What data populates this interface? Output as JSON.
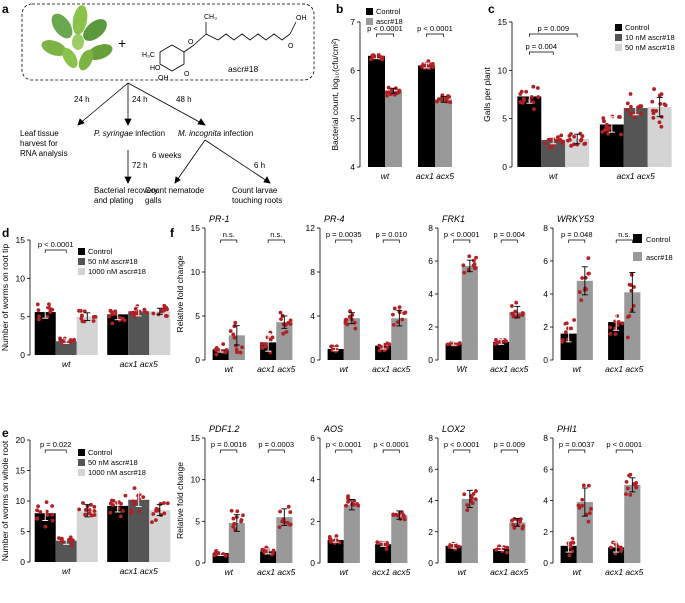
{
  "colors": {
    "control": "#000000",
    "treat_dark": "#555555",
    "treat_mid": "#999999",
    "treat_light": "#d4d4d4",
    "point": "#b02025",
    "axis": "#000000"
  },
  "schematic": {
    "panel_label": "a",
    "compound_label": "ascr#18",
    "plus_sign": "+",
    "time_labels": [
      "24 h",
      "24 h",
      "48 h",
      "72 h",
      "6 weeks",
      "6 h"
    ],
    "nodes": {
      "leaf_tissue": "Leaf tissue\nharvest for\nRNA analysis",
      "pseudomonas_prefix": "P. syringae",
      "pseudomonas_suffix": " infection",
      "meloidogyne_prefix": "M. incognita",
      "meloidogyne_suffix": " infection",
      "bacterial_recovery": "Bacterial recovery\nand plating",
      "count_galls": "Count nematode\ngalls",
      "count_larvae": "Count larvae\ntouching roots"
    },
    "molecule_atoms": [
      "H₃C",
      "OH",
      "O",
      "HO",
      "O",
      "CH₃",
      "OH",
      "O"
    ]
  },
  "chart_data": [
    {
      "panel": "b",
      "type": "bar",
      "ylabel": "Bacterial count, log₁₀(cfu/cm²)",
      "ylim": [
        4,
        7
      ],
      "yticks": [
        "4",
        "5",
        "6",
        "7"
      ],
      "categories": [
        "wt",
        "acx1 acx5"
      ],
      "legend": [
        "Control",
        "ascr#18"
      ],
      "series": [
        {
          "name": "Control",
          "values": [
            6.3,
            6.1
          ],
          "err": [
            0.06,
            0.05
          ]
        },
        {
          "name": "ascr#18",
          "values": [
            5.58,
            5.4
          ],
          "err": [
            0.05,
            0.06
          ]
        }
      ],
      "pvalues": [
        "p < 0.0001",
        "p < 0.0001"
      ]
    },
    {
      "panel": "c",
      "type": "bar",
      "ylabel": "Galls per plant",
      "ylim": [
        0,
        15
      ],
      "yticks": [
        "0",
        "5",
        "10",
        "15"
      ],
      "categories": [
        "wt",
        "acx1 acx5"
      ],
      "legend": [
        "Control",
        "10 nM ascr#18",
        "50 nM ascr#18"
      ],
      "series": [
        {
          "name": "Control",
          "values": [
            7.3,
            4.4
          ],
          "err": [
            0.7,
            0.8
          ]
        },
        {
          "name": "10 nM ascr#18",
          "values": [
            2.8,
            6.1
          ],
          "err": [
            0.4,
            0.7
          ]
        },
        {
          "name": "50 nM ascr#18",
          "values": [
            2.9,
            6.2
          ],
          "err": [
            0.5,
            1.0
          ]
        }
      ],
      "pvalues": [
        "p = 0.009",
        "p = 0.004"
      ]
    },
    {
      "panel": "d",
      "type": "bar",
      "ylabel": "Number of worms on root tip",
      "ylim": [
        0,
        15
      ],
      "yticks": [
        "0",
        "5",
        "10",
        "15"
      ],
      "categories": [
        "wt",
        "acx1 acx5"
      ],
      "legend": [
        "Control",
        "50 nM ascr#18",
        "1000 nM ascr#18"
      ],
      "series": [
        {
          "name": "Control",
          "values": [
            5.6,
            5.3
          ],
          "err": [
            0.8,
            0.7
          ]
        },
        {
          "name": "50 nM ascr#18",
          "values": [
            1.8,
            5.7
          ],
          "err": [
            0.3,
            0.6
          ]
        },
        {
          "name": "1000 nM ascr#18",
          "values": [
            5.0,
            5.7
          ],
          "err": [
            0.5,
            0.4
          ]
        }
      ],
      "pvalues": [
        "p < 0.0001"
      ]
    },
    {
      "panel": "e",
      "type": "bar",
      "ylabel": "Number of worms on whole root",
      "ylim": [
        0,
        20
      ],
      "yticks": [
        "0",
        "5",
        "10",
        "15",
        "20"
      ],
      "categories": [
        "wt",
        "acx1 acx5"
      ],
      "legend": [
        "Control",
        "50 nM ascr#18",
        "1000 nM ascr#18"
      ],
      "series": [
        {
          "name": "Control",
          "values": [
            8.0,
            9.2
          ],
          "err": [
            1.2,
            1.0
          ]
        },
        {
          "name": "50 nM ascr#18",
          "values": [
            3.5,
            10.2
          ],
          "err": [
            0.6,
            1.1
          ]
        },
        {
          "name": "1000 nM ascr#18",
          "values": [
            8.4,
            8.5
          ],
          "err": [
            1.0,
            0.9
          ]
        }
      ],
      "pvalues": [
        "p = 0.022"
      ]
    },
    {
      "panel": "f",
      "type": "bar",
      "gene": "PR-1",
      "ylabel": "Relative fold change",
      "ylim": [
        0,
        15
      ],
      "yticks": [
        "0",
        "5",
        "10",
        "15"
      ],
      "categories": [
        "wt",
        "acx1 acx5"
      ],
      "series": [
        {
          "name": "Control",
          "values": [
            1.2,
            2.0
          ],
          "err": [
            0.3,
            1.0
          ]
        },
        {
          "name": "ascr#18",
          "values": [
            2.8,
            4.3
          ],
          "err": [
            1.1,
            0.7
          ]
        }
      ],
      "pvalues": [
        "n.s.",
        "n.s."
      ]
    },
    {
      "panel": "f",
      "type": "bar",
      "gene": "PR-4",
      "ylabel": "",
      "ylim": [
        0,
        12
      ],
      "yticks": [
        "0",
        "4",
        "8",
        "12"
      ],
      "categories": [
        "wt",
        "acx1 acx5"
      ],
      "series": [
        {
          "name": "Control",
          "values": [
            1.0,
            1.3
          ],
          "err": [
            0.15,
            0.3
          ]
        },
        {
          "name": "ascr#18",
          "values": [
            3.8,
            3.8
          ],
          "err": [
            0.5,
            0.7
          ]
        }
      ],
      "pvalues": [
        "p = 0.0035",
        "p = 0.010"
      ]
    },
    {
      "panel": "f",
      "type": "bar",
      "gene": "FRK1",
      "ylabel": "",
      "ylim": [
        0,
        8
      ],
      "yticks": [
        "0",
        "2",
        "4",
        "6",
        "8"
      ],
      "categories": [
        "Wt",
        "acx1 acx5"
      ],
      "series": [
        {
          "name": "Control",
          "values": [
            1.0,
            1.1
          ],
          "err": [
            0.1,
            0.15
          ]
        },
        {
          "name": "ascr#18",
          "values": [
            5.7,
            2.9
          ],
          "err": [
            0.35,
            0.35
          ]
        }
      ],
      "pvalues": [
        "p < 0.0001",
        "p = 0.004"
      ]
    },
    {
      "panel": "f",
      "type": "bar",
      "gene": "WRKY53",
      "ylabel": "",
      "ylim": [
        0,
        8
      ],
      "yticks": [
        "0",
        "2",
        "4",
        "6",
        "8"
      ],
      "categories": [
        "wt",
        "acx1 acx5"
      ],
      "series": [
        {
          "name": "Control",
          "values": [
            1.6,
            2.3
          ],
          "err": [
            0.5,
            0.5
          ]
        },
        {
          "name": "ascr#18",
          "values": [
            4.8,
            4.1
          ],
          "err": [
            0.85,
            1.2
          ]
        }
      ],
      "pvalues": [
        "p = 0.048",
        "n.s."
      ]
    },
    {
      "panel": "f",
      "type": "bar",
      "gene": "PDF1.2",
      "ylabel": "Relative fold change",
      "ylim": [
        0,
        15
      ],
      "yticks": [
        "0",
        "5",
        "10",
        "15"
      ],
      "categories": [
        "wt",
        "acx1 acx5"
      ],
      "series": [
        {
          "name": "Control",
          "values": [
            1.2,
            1.4
          ],
          "err": [
            0.3,
            0.3
          ]
        },
        {
          "name": "ascr#18",
          "values": [
            4.8,
            5.5
          ],
          "err": [
            1.0,
            1.0
          ]
        }
      ],
      "pvalues": [
        "p = 0.0016",
        "p = 0.0003"
      ]
    },
    {
      "panel": "f",
      "type": "bar",
      "gene": "AOS",
      "ylabel": "",
      "ylim": [
        0,
        6
      ],
      "yticks": [
        "0",
        "2",
        "4",
        "6"
      ],
      "categories": [
        "wt",
        "acx1 acx5"
      ],
      "series": [
        {
          "name": "Control",
          "values": [
            1.1,
            0.9
          ],
          "err": [
            0.1,
            0.1
          ]
        },
        {
          "name": "ascr#18",
          "values": [
            2.8,
            2.3
          ],
          "err": [
            0.25,
            0.2
          ]
        }
      ],
      "pvalues": [
        "p < 0.0001",
        "p < 0.0001"
      ]
    },
    {
      "panel": "f",
      "type": "bar",
      "gene": "LOX2",
      "ylabel": "",
      "ylim": [
        0,
        8
      ],
      "yticks": [
        "0",
        "2",
        "4",
        "6",
        "8"
      ],
      "categories": [
        "wt",
        "acx1 acx5"
      ],
      "series": [
        {
          "name": "Control",
          "values": [
            1.1,
            0.9
          ],
          "err": [
            0.15,
            0.1
          ]
        },
        {
          "name": "ascr#18",
          "values": [
            4.1,
            2.6
          ],
          "err": [
            0.55,
            0.25
          ]
        }
      ],
      "pvalues": [
        "p < 0.0001",
        "p = 0.009"
      ]
    },
    {
      "panel": "f",
      "type": "bar",
      "gene": "PHI1",
      "ylabel": "",
      "ylim": [
        0,
        8
      ],
      "yticks": [
        "0",
        "2",
        "4",
        "6",
        "8"
      ],
      "categories": [
        "wt",
        "acx1 acx5"
      ],
      "series": [
        {
          "name": "Control",
          "values": [
            1.1,
            1.0
          ],
          "err": [
            0.4,
            0.3
          ]
        },
        {
          "name": "ascr#18",
          "values": [
            3.9,
            5.0
          ],
          "err": [
            0.9,
            0.45
          ]
        }
      ],
      "pvalues": [
        "p = 0.0037",
        "p < 0.0001"
      ]
    }
  ],
  "panel_f_legend": [
    "Control",
    "ascr#18"
  ]
}
